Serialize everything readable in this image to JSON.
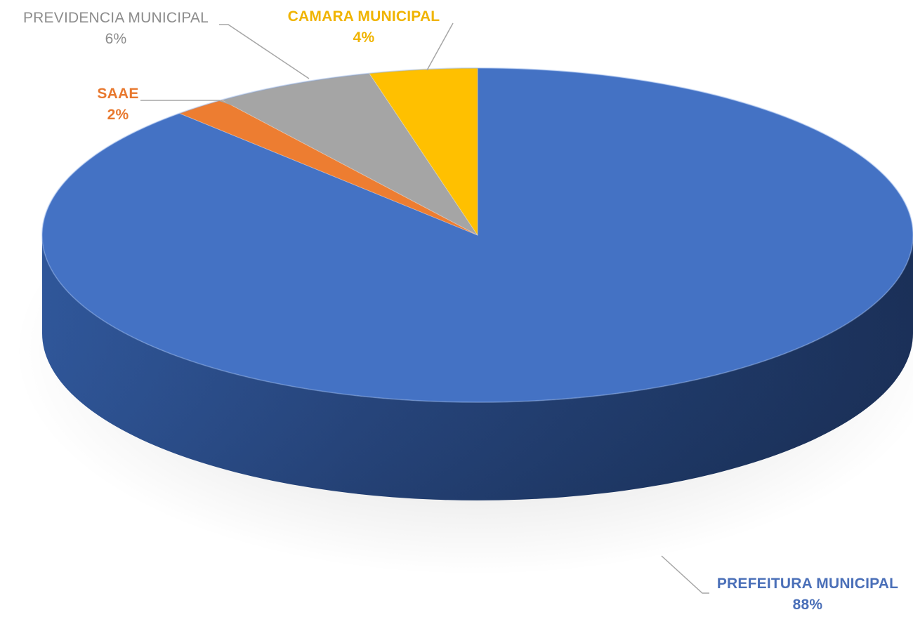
{
  "chart_data": {
    "type": "pie",
    "style": "3d",
    "start": "top-center",
    "direction": "clockwise",
    "title": "",
    "legend": "none",
    "data_labels": "category-and-percent",
    "slices": [
      {
        "name": "PREFEITURA MUNICIPAL",
        "value": 88,
        "pct_label": "88%",
        "color": "#4472C4",
        "label_color": "#4A6FB8"
      },
      {
        "name": "SAAE",
        "value": 2,
        "pct_label": "2%",
        "color": "#ED7D31",
        "label_color": "#E8782E"
      },
      {
        "name": "PREVIDENCIA MUNICIPAL",
        "value": 6,
        "pct_label": "6%",
        "color": "#A5A5A5",
        "label_color": "#8C8C8C"
      },
      {
        "name": "CAMARA MUNICIPAL",
        "value": 4,
        "pct_label": "4%",
        "color": "#FFC000",
        "label_color": "#F0B400"
      }
    ]
  }
}
